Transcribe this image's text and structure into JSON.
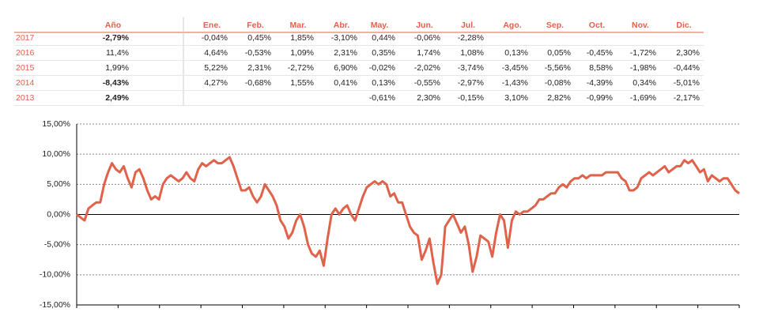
{
  "table": {
    "header": [
      "Año",
      "Ene.",
      "Feb.",
      "Mar.",
      "Abr.",
      "May.",
      "Jun.",
      "Jul.",
      "Ago.",
      "Sep.",
      "Oct.",
      "Nov.",
      "Dic."
    ],
    "rows": [
      {
        "year": "2017",
        "cells": [
          "-2,79%",
          "-0,04%",
          "0,45%",
          "1,85%",
          "-3,10%",
          "0,44%",
          "-0,06%",
          "-2,28%",
          null,
          null,
          null,
          null,
          null
        ]
      },
      {
        "year": "2016",
        "cells": [
          "11,4%",
          "4,64%",
          "-0,53%",
          "1,09%",
          "2,31%",
          "0,35%",
          "1,74%",
          "1,08%",
          "0,13%",
          "0,05%",
          "-0,45%",
          "-1,72%",
          "2,30%"
        ]
      },
      {
        "year": "2015",
        "cells": [
          "1,99%",
          "5,22%",
          "2,31%",
          "-2,72%",
          "6,90%",
          "-0,02%",
          "-2,02%",
          "-3,74%",
          "-3,45%",
          "-5,56%",
          "8,58%",
          "-1,98%",
          "-0,44%"
        ]
      },
      {
        "year": "2014",
        "cells": [
          "-8,43%",
          "4,27%",
          "-0,68%",
          "1,55%",
          "0,41%",
          "0,13%",
          "-0,55%",
          "-2,97%",
          "-1,43%",
          "-0,08%",
          "-4,39%",
          "0,34%",
          "-5,01%"
        ]
      },
      {
        "year": "2013",
        "cells": [
          "2,49%",
          null,
          null,
          null,
          null,
          "-0,61%",
          "2,30%",
          "-0,15%",
          "3,10%",
          "2,82%",
          "-0,99%",
          "-1,69%",
          "-2,17%"
        ]
      }
    ]
  },
  "chart_data": {
    "type": "line",
    "color": "#e0624a",
    "ylim": [
      -15,
      15
    ],
    "yticks": [
      {
        "value": -15,
        "label": "-15,00%"
      },
      {
        "value": -10,
        "label": "-10,00%"
      },
      {
        "value": -5,
        "label": "-5,00%"
      },
      {
        "value": 0,
        "label": "0,00%"
      },
      {
        "value": 5,
        "label": "5,00%"
      },
      {
        "value": 10,
        "label": "10,00%"
      },
      {
        "value": 15,
        "label": "15,00%"
      }
    ],
    "grid": true,
    "values": [
      0,
      -0.5,
      -1,
      1,
      1.5,
      2,
      2,
      5,
      7,
      8.5,
      7.5,
      7,
      8,
      6,
      4.5,
      7,
      7.5,
      6,
      4,
      2.5,
      3,
      2.5,
      5,
      6,
      6.5,
      6,
      5.5,
      6,
      7,
      6,
      5.5,
      7.5,
      8.5,
      8,
      8.5,
      9,
      8.5,
      8.5,
      9,
      9.5,
      8,
      6,
      4,
      4,
      4.5,
      3,
      2,
      3,
      5,
      4,
      3,
      1.5,
      -1,
      -2,
      -4,
      -3,
      -1,
      0,
      -2,
      -5,
      -6.5,
      -7,
      -6,
      -8.5,
      -4,
      0,
      1,
      0,
      1,
      1.5,
      0,
      -1,
      1,
      3,
      4.5,
      5,
      5.5,
      5,
      5.5,
      5,
      3,
      3.5,
      2,
      2,
      0,
      -2,
      -3,
      -3.5,
      -7.5,
      -6,
      -4,
      -8,
      -11.5,
      -10,
      -2,
      -1,
      0,
      -1.5,
      -3,
      -2,
      -5,
      -9.5,
      -7,
      -3.5,
      -4,
      -4.5,
      -7,
      -3,
      0,
      -1,
      -5.5,
      -1,
      0.5,
      0,
      0.5,
      0.5,
      1,
      1.5,
      2.5,
      2.5,
      3,
      3.5,
      3.5,
      4.5,
      5,
      4.5,
      5.5,
      6,
      6,
      6.5,
      6,
      6.5,
      6.5,
      6.5,
      6.5,
      7,
      7,
      7,
      7,
      6,
      5.5,
      4,
      4,
      4.5,
      6,
      6.5,
      7,
      6.5,
      7,
      7.5,
      8,
      7,
      7.5,
      8,
      8,
      9,
      8.5,
      9,
      8,
      7,
      7.5,
      5.5,
      6.5,
      6,
      5.5,
      6,
      6,
      5,
      4,
      3.5
    ]
  }
}
